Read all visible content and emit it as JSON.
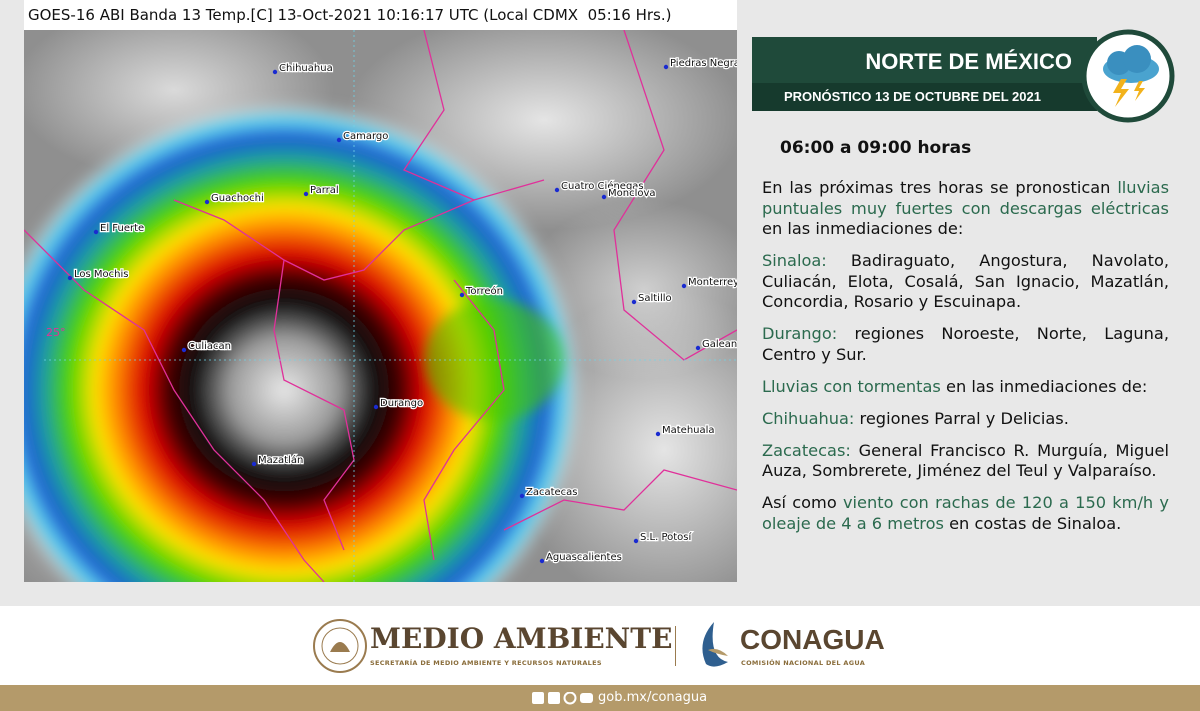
{
  "satellite": {
    "caption": "GOES-16 ABI Banda 13 Temp.[C] 13-Oct-2021 10:16:17 UTC (Local CDMX  05:16 Hrs.)",
    "latitude_label": "25°",
    "cities": [
      "Chihuahua",
      "Piedras Negras",
      "Camargo",
      "Guachochi",
      "Parral",
      "Cuatro Ciénegas",
      "Monclova",
      "El Fuerte",
      "Los Mochis",
      "Monterrey",
      "Torreón",
      "Saltillo",
      "Culiacan",
      "Galeana",
      "Durango",
      "Matehuala",
      "Mazatlán",
      "Zacatecas",
      "S.L. Potosí",
      "Aguascalientes"
    ]
  },
  "header": {
    "title": "NORTE DE MÉXICO",
    "subtitle": "PRONÓSTICO 13 DE OCTUBRE DEL 2021"
  },
  "forecast": {
    "time": "06:00 a 09:00 horas",
    "paragraphs": [
      [
        {
          "text": "En las próximas tres horas se pronostican "
        },
        {
          "text": "lluvias puntuales muy fuertes con descargas eléctricas",
          "emphasis": true
        },
        {
          "text": " en las inmediaciones de:"
        }
      ],
      [
        {
          "text": "Sinaloa:",
          "emphasis": true
        },
        {
          "text": " Badiraguato, Angostura, Navolato, Culiacán, Elota, Cosalá, San Ignacio, Mazatlán, Concordia, Rosario y Escuinapa."
        }
      ],
      [
        {
          "text": "Durango:",
          "emphasis": true
        },
        {
          "text": " regiones Noroeste, Norte, Laguna, Centro y Sur."
        }
      ],
      [
        {
          "text": "Lluvias con tormentas",
          "emphasis": true
        },
        {
          "text": " en las inmediaciones de:"
        }
      ],
      [
        {
          "text": "Chihuahua:",
          "emphasis": true
        },
        {
          "text": " regiones Parral y Delicias."
        }
      ],
      [
        {
          "text": "Zacatecas:",
          "emphasis": true
        },
        {
          "text": " General Francisco R. Murguía, Miguel Auza, Sombrerete, Jiménez del Teul y Valparaíso."
        }
      ],
      [
        {
          "text": "Así como "
        },
        {
          "text": "viento con rachas de 120 a 150 km/h y oleaje de 4 a 6 metros",
          "emphasis": true
        },
        {
          "text": " en costas de Sinaloa."
        }
      ]
    ]
  },
  "footer": {
    "semarnat_title": "MEDIO AMBIENTE",
    "semarnat_subtitle": "SECRETARÍA DE MEDIO AMBIENTE Y RECURSOS NATURALES",
    "conagua_title": "CONAGUA",
    "conagua_subtitle": "COMISIÓN NACIONAL DEL AGUA",
    "url": "gob.mx/conagua"
  }
}
